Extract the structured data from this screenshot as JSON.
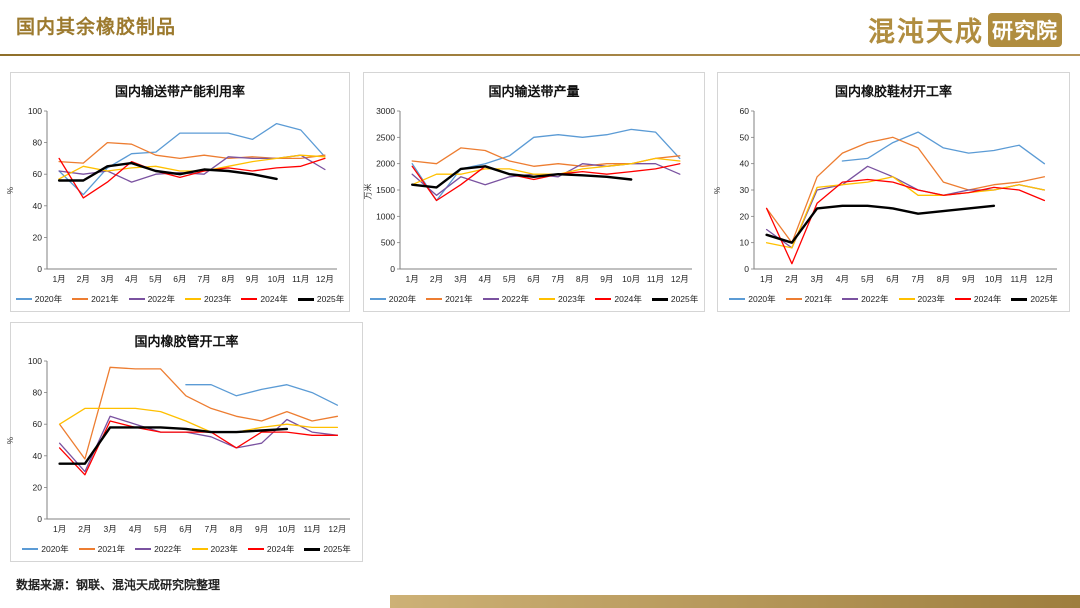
{
  "header": {
    "title": "国内其余橡胶制品",
    "logo_main": "混沌天成",
    "logo_seal": "研究院",
    "accent_color": "#9C7A2E"
  },
  "footer": {
    "source": "数据来源：钢联、混沌天成研究院整理"
  },
  "chart_data": [
    {
      "type": "line",
      "title": "国内输送带产能利用率",
      "ylabel": "%",
      "ylim": [
        0,
        100
      ],
      "yticks": [
        0,
        20,
        40,
        60,
        80,
        100
      ],
      "categories": [
        "1月",
        "2月",
        "3月",
        "4月",
        "5月",
        "6月",
        "7月",
        "8月",
        "9月",
        "10月",
        "11月",
        "12月"
      ],
      "series": [
        {
          "name": "2020年",
          "color": "#5B9BD5",
          "width": 1.3,
          "values": [
            62,
            47,
            64,
            73,
            74,
            86,
            86,
            86,
            82,
            92,
            88,
            71
          ]
        },
        {
          "name": "2021年",
          "color": "#ED7D31",
          "width": 1.3,
          "values": [
            68,
            67,
            80,
            79,
            72,
            70,
            72,
            70,
            71,
            70,
            70,
            72
          ]
        },
        {
          "name": "2022年",
          "color": "#7A52A0",
          "width": 1.3,
          "values": [
            62,
            60,
            62,
            55,
            60,
            61,
            60,
            71,
            70,
            70,
            72,
            63
          ]
        },
        {
          "name": "2023年",
          "color": "#FFC000",
          "width": 1.3,
          "values": [
            57,
            65,
            62,
            64,
            65,
            62,
            62,
            65,
            68,
            70,
            72,
            71
          ]
        },
        {
          "name": "2024年",
          "color": "#FF0000",
          "width": 1.3,
          "values": [
            70,
            45,
            55,
            68,
            62,
            58,
            62,
            64,
            62,
            64,
            65,
            70
          ]
        },
        {
          "name": "2025年",
          "color": "#000000",
          "width": 2.4,
          "values": [
            56,
            56,
            65,
            67,
            62,
            60,
            63,
            62,
            60,
            57,
            null,
            null
          ]
        }
      ]
    },
    {
      "type": "line",
      "title": "国内输送带产量",
      "ylabel": "万米",
      "ylim": [
        0,
        3000
      ],
      "yticks": [
        0,
        500,
        1000,
        1500,
        2000,
        2500,
        3000
      ],
      "categories": [
        "1月",
        "2月",
        "3月",
        "4月",
        "5月",
        "6月",
        "7月",
        "8月",
        "9月",
        "10月",
        "11月",
        "12月"
      ],
      "series": [
        {
          "name": "2020年",
          "color": "#5B9BD5",
          "width": 1.3,
          "values": [
            2000,
            1300,
            1900,
            2000,
            2150,
            2500,
            2550,
            2500,
            2550,
            2650,
            2600,
            2100
          ]
        },
        {
          "name": "2021年",
          "color": "#ED7D31",
          "width": 1.3,
          "values": [
            2050,
            2000,
            2300,
            2250,
            2050,
            1950,
            2000,
            1950,
            2000,
            2000,
            2100,
            2150
          ]
        },
        {
          "name": "2022年",
          "color": "#7A52A0",
          "width": 1.3,
          "values": [
            1800,
            1400,
            1750,
            1600,
            1750,
            1800,
            1750,
            2000,
            1950,
            2000,
            2000,
            1800
          ]
        },
        {
          "name": "2023年",
          "color": "#FFC000",
          "width": 1.3,
          "values": [
            1600,
            1800,
            1800,
            1900,
            1900,
            1800,
            1800,
            1900,
            1950,
            2000,
            2100,
            2050
          ]
        },
        {
          "name": "2024年",
          "color": "#FF0000",
          "width": 1.3,
          "values": [
            1950,
            1300,
            1600,
            1950,
            1800,
            1700,
            1800,
            1850,
            1800,
            1850,
            1900,
            2000
          ]
        },
        {
          "name": "2025年",
          "color": "#000000",
          "width": 2.4,
          "values": [
            1600,
            1550,
            1900,
            1950,
            1800,
            1750,
            1800,
            1780,
            1750,
            1700,
            null,
            null
          ]
        }
      ]
    },
    {
      "type": "line",
      "title": "国内橡胶鞋材开工率",
      "ylabel": "%",
      "ylim": [
        0,
        60
      ],
      "yticks": [
        0,
        10,
        20,
        30,
        40,
        50,
        60
      ],
      "categories": [
        "1月",
        "2月",
        "3月",
        "4月",
        "5月",
        "6月",
        "7月",
        "8月",
        "9月",
        "10月",
        "11月",
        "12月"
      ],
      "series": [
        {
          "name": "2020年",
          "color": "#5B9BD5",
          "width": 1.3,
          "values": [
            null,
            null,
            null,
            41,
            42,
            48,
            52,
            46,
            44,
            45,
            47,
            40
          ]
        },
        {
          "name": "2021年",
          "color": "#ED7D31",
          "width": 1.3,
          "values": [
            23,
            10,
            35,
            44,
            48,
            50,
            46,
            33,
            30,
            32,
            33,
            35
          ]
        },
        {
          "name": "2022年",
          "color": "#7A52A0",
          "width": 1.3,
          "values": [
            15,
            8,
            30,
            32,
            39,
            35,
            30,
            28,
            30,
            30,
            32,
            30
          ]
        },
        {
          "name": "2023年",
          "color": "#FFC000",
          "width": 1.3,
          "values": [
            10,
            8,
            31,
            32,
            33,
            35,
            28,
            28,
            29,
            30,
            32,
            30
          ]
        },
        {
          "name": "2024年",
          "color": "#FF0000",
          "width": 1.3,
          "values": [
            23,
            2,
            25,
            33,
            34,
            33,
            30,
            28,
            29,
            31,
            30,
            26
          ]
        },
        {
          "name": "2025年",
          "color": "#000000",
          "width": 2.4,
          "values": [
            13,
            10,
            23,
            24,
            24,
            23,
            21,
            22,
            23,
            24,
            null,
            null
          ]
        }
      ]
    },
    {
      "type": "line",
      "title": "国内橡胶管开工率",
      "ylabel": "%",
      "ylim": [
        0,
        100
      ],
      "yticks": [
        0,
        20,
        40,
        60,
        80,
        100
      ],
      "categories": [
        "1月",
        "2月",
        "3月",
        "4月",
        "5月",
        "6月",
        "7月",
        "8月",
        "9月",
        "10月",
        "11月",
        "12月"
      ],
      "series": [
        {
          "name": "2020年",
          "color": "#5B9BD5",
          "width": 1.3,
          "values": [
            null,
            null,
            null,
            null,
            null,
            85,
            85,
            78,
            82,
            85,
            80,
            72
          ]
        },
        {
          "name": "2021年",
          "color": "#ED7D31",
          "width": 1.3,
          "values": [
            60,
            38,
            96,
            95,
            95,
            78,
            70,
            65,
            62,
            68,
            62,
            65
          ]
        },
        {
          "name": "2022年",
          "color": "#7A52A0",
          "width": 1.3,
          "values": [
            48,
            30,
            65,
            60,
            55,
            55,
            52,
            45,
            48,
            63,
            55,
            53
          ]
        },
        {
          "name": "2023年",
          "color": "#FFC000",
          "width": 1.3,
          "values": [
            60,
            70,
            70,
            70,
            68,
            62,
            55,
            55,
            58,
            60,
            58,
            58
          ]
        },
        {
          "name": "2024年",
          "color": "#FF0000",
          "width": 1.3,
          "values": [
            45,
            28,
            62,
            58,
            55,
            55,
            55,
            45,
            55,
            55,
            53,
            53
          ]
        },
        {
          "name": "2025年",
          "color": "#000000",
          "width": 2.4,
          "values": [
            35,
            35,
            58,
            58,
            58,
            57,
            55,
            55,
            56,
            57,
            null,
            null
          ]
        }
      ]
    }
  ]
}
